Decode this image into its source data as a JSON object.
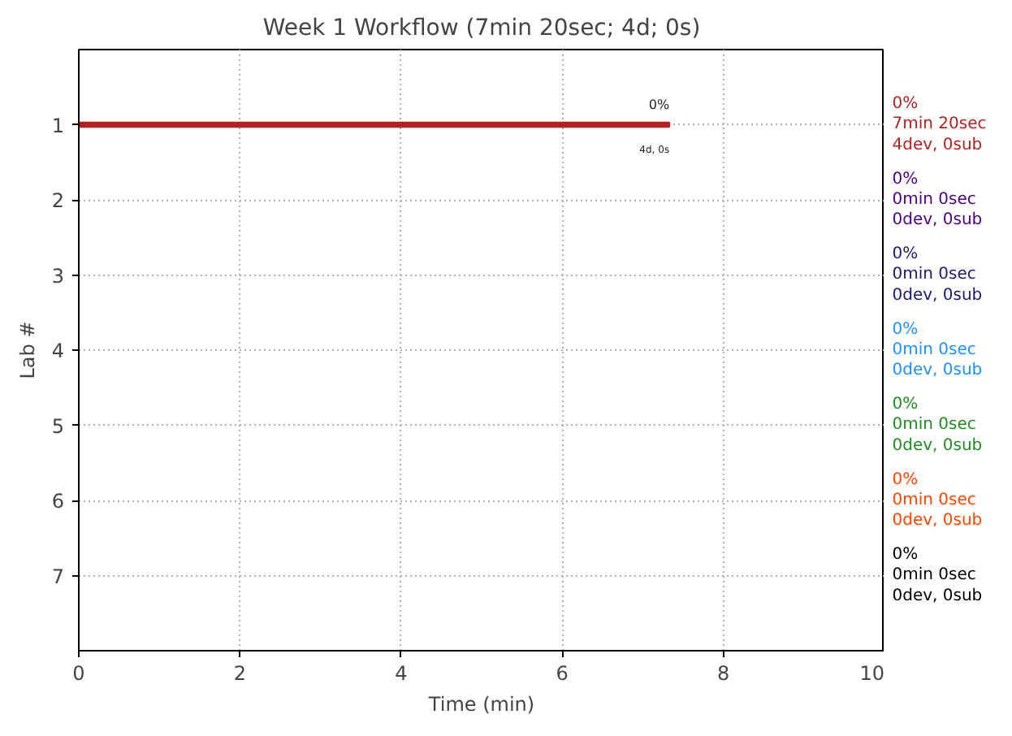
{
  "chart_data": {
    "type": "bar",
    "orientation": "horizontal",
    "title": "Week 1 Workflow (7min 20sec; 4d; 0s)",
    "xlabel": "Time (min)",
    "ylabel": "Lab #",
    "xlim": [
      0,
      10
    ],
    "xticks": [
      0,
      2,
      4,
      6,
      8,
      10
    ],
    "grid": true,
    "categories": [
      "1",
      "2",
      "3",
      "4",
      "5",
      "6",
      "7"
    ],
    "values": [
      7.33,
      0,
      0,
      0,
      0,
      0,
      0
    ],
    "colors": [
      "#b22222",
      "#4b0082",
      "#191970",
      "#1e90ff",
      "#228b22",
      "#ff4500",
      "#000000"
    ],
    "value_labels": [
      "0%\n7min 20sec\n4dev, 0sub",
      "0%\n0min 0sec\n0dev, 0sub",
      "0%\n0min 0sec\n0dev, 0sub",
      "0%\n0min 0sec\n0dev, 0sub",
      "0%\n0min 0sec\n0dev, 0sub",
      "0%\n0min 0sec\n0dev, 0sub",
      "0%\n0min 0sec\n0dev, 0sub"
    ],
    "annotations": [
      {
        "text": "0%",
        "x": 7.33,
        "y": "1"
      },
      {
        "text": "4d, 0s",
        "x": 7.33,
        "y": "1"
      }
    ]
  }
}
